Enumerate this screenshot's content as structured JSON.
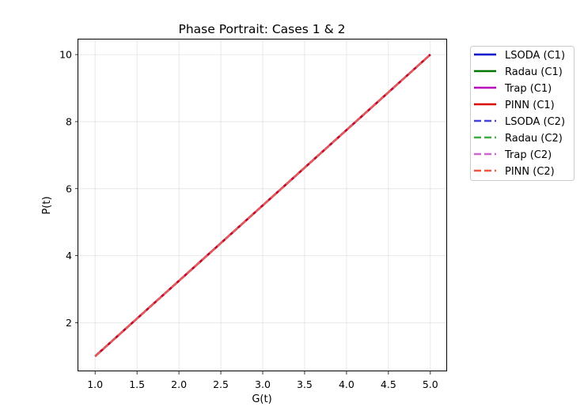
{
  "chart_data": {
    "type": "line",
    "title": "Phase Portrait: Cases 1 & 2",
    "xlabel": "G(t)",
    "ylabel": "P(t)",
    "xlim": [
      0.8,
      5.2
    ],
    "ylim": [
      0.55,
      10.45
    ],
    "xticks": [
      1.0,
      1.5,
      2.0,
      2.5,
      3.0,
      3.5,
      4.0,
      4.5,
      5.0
    ],
    "xtick_labels": [
      "1.0",
      "1.5",
      "2.0",
      "2.5",
      "3.0",
      "3.5",
      "4.0",
      "4.5",
      "5.0"
    ],
    "yticks": [
      2,
      4,
      6,
      8,
      10
    ],
    "ytick_labels": [
      "2",
      "4",
      "6",
      "8",
      "10"
    ],
    "grid": true,
    "legend_position": "outside-right-top",
    "series": [
      {
        "name": "LSODA (C1)",
        "color": "#0000cc",
        "style": "solid",
        "x": [
          1.0,
          5.0
        ],
        "y": [
          1.0,
          10.0
        ]
      },
      {
        "name": "Radau (C1)",
        "color": "#007700",
        "style": "solid",
        "x": [
          1.0,
          5.0
        ],
        "y": [
          1.0,
          10.0
        ]
      },
      {
        "name": "Trap (C1)",
        "color": "#bb00bb",
        "style": "solid",
        "x": [
          1.0,
          5.0
        ],
        "y": [
          1.0,
          10.0
        ]
      },
      {
        "name": "PINN (C1)",
        "color": "#dd0000",
        "style": "solid",
        "x": [
          1.0,
          5.0
        ],
        "y": [
          1.0,
          10.0
        ]
      },
      {
        "name": "LSODA (C2)",
        "color": "#4444dd",
        "style": "dashed",
        "x": [
          1.0,
          5.0
        ],
        "y": [
          1.0,
          10.0
        ]
      },
      {
        "name": "Radau (C2)",
        "color": "#44aa44",
        "style": "dashed",
        "x": [
          1.0,
          5.0
        ],
        "y": [
          1.0,
          10.0
        ]
      },
      {
        "name": "Trap (C2)",
        "color": "#cc66cc",
        "style": "dashed",
        "x": [
          1.0,
          5.0
        ],
        "y": [
          1.0,
          10.0
        ]
      },
      {
        "name": "PINN (C2)",
        "color": "#ee5544",
        "style": "dashed",
        "x": [
          1.0,
          5.0
        ],
        "y": [
          1.0,
          10.0
        ]
      }
    ]
  }
}
